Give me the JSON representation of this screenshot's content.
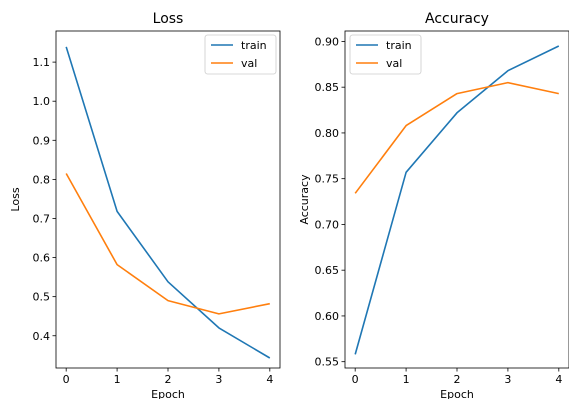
{
  "colors": {
    "train": "#1f77b4",
    "val": "#ff7f0e",
    "axis": "#000000",
    "legend_border": "#cccccc"
  },
  "chart_data": [
    {
      "type": "line",
      "title": "Loss",
      "xlabel": "Epoch",
      "ylabel": "Loss",
      "x": [
        0,
        1,
        2,
        3,
        4
      ],
      "xticks": [
        "0",
        "1",
        "2",
        "3",
        "4"
      ],
      "xlim": [
        -0.2,
        4.2
      ],
      "ylim": [
        0.3175,
        1.1796
      ],
      "yticks": [
        "0.4",
        "0.5",
        "0.6",
        "0.7",
        "0.8",
        "0.9",
        "1.0",
        "1.1"
      ],
      "grid": false,
      "legend_position": "top-right",
      "series": [
        {
          "name": "train",
          "values": [
            1.139,
            0.718,
            0.538,
            0.42,
            0.343
          ]
        },
        {
          "name": "val",
          "values": [
            0.815,
            0.582,
            0.49,
            0.456,
            0.482
          ]
        }
      ]
    },
    {
      "type": "line",
      "title": "Accuracy",
      "xlabel": "Epoch",
      "ylabel": "Accuracy",
      "x": [
        0,
        1,
        2,
        3,
        4
      ],
      "xticks": [
        "0",
        "1",
        "2",
        "3",
        "4"
      ],
      "xlim": [
        -0.2,
        4.2
      ],
      "ylim": [
        0.5431,
        0.9114
      ],
      "yticks": [
        "0.55",
        "0.60",
        "0.65",
        "0.70",
        "0.75",
        "0.80",
        "0.85",
        "0.90"
      ],
      "grid": false,
      "legend_position": "top-left",
      "series": [
        {
          "name": "train",
          "values": [
            0.558,
            0.757,
            0.822,
            0.868,
            0.895
          ]
        },
        {
          "name": "val",
          "values": [
            0.734,
            0.808,
            0.843,
            0.855,
            0.843
          ]
        }
      ]
    }
  ]
}
